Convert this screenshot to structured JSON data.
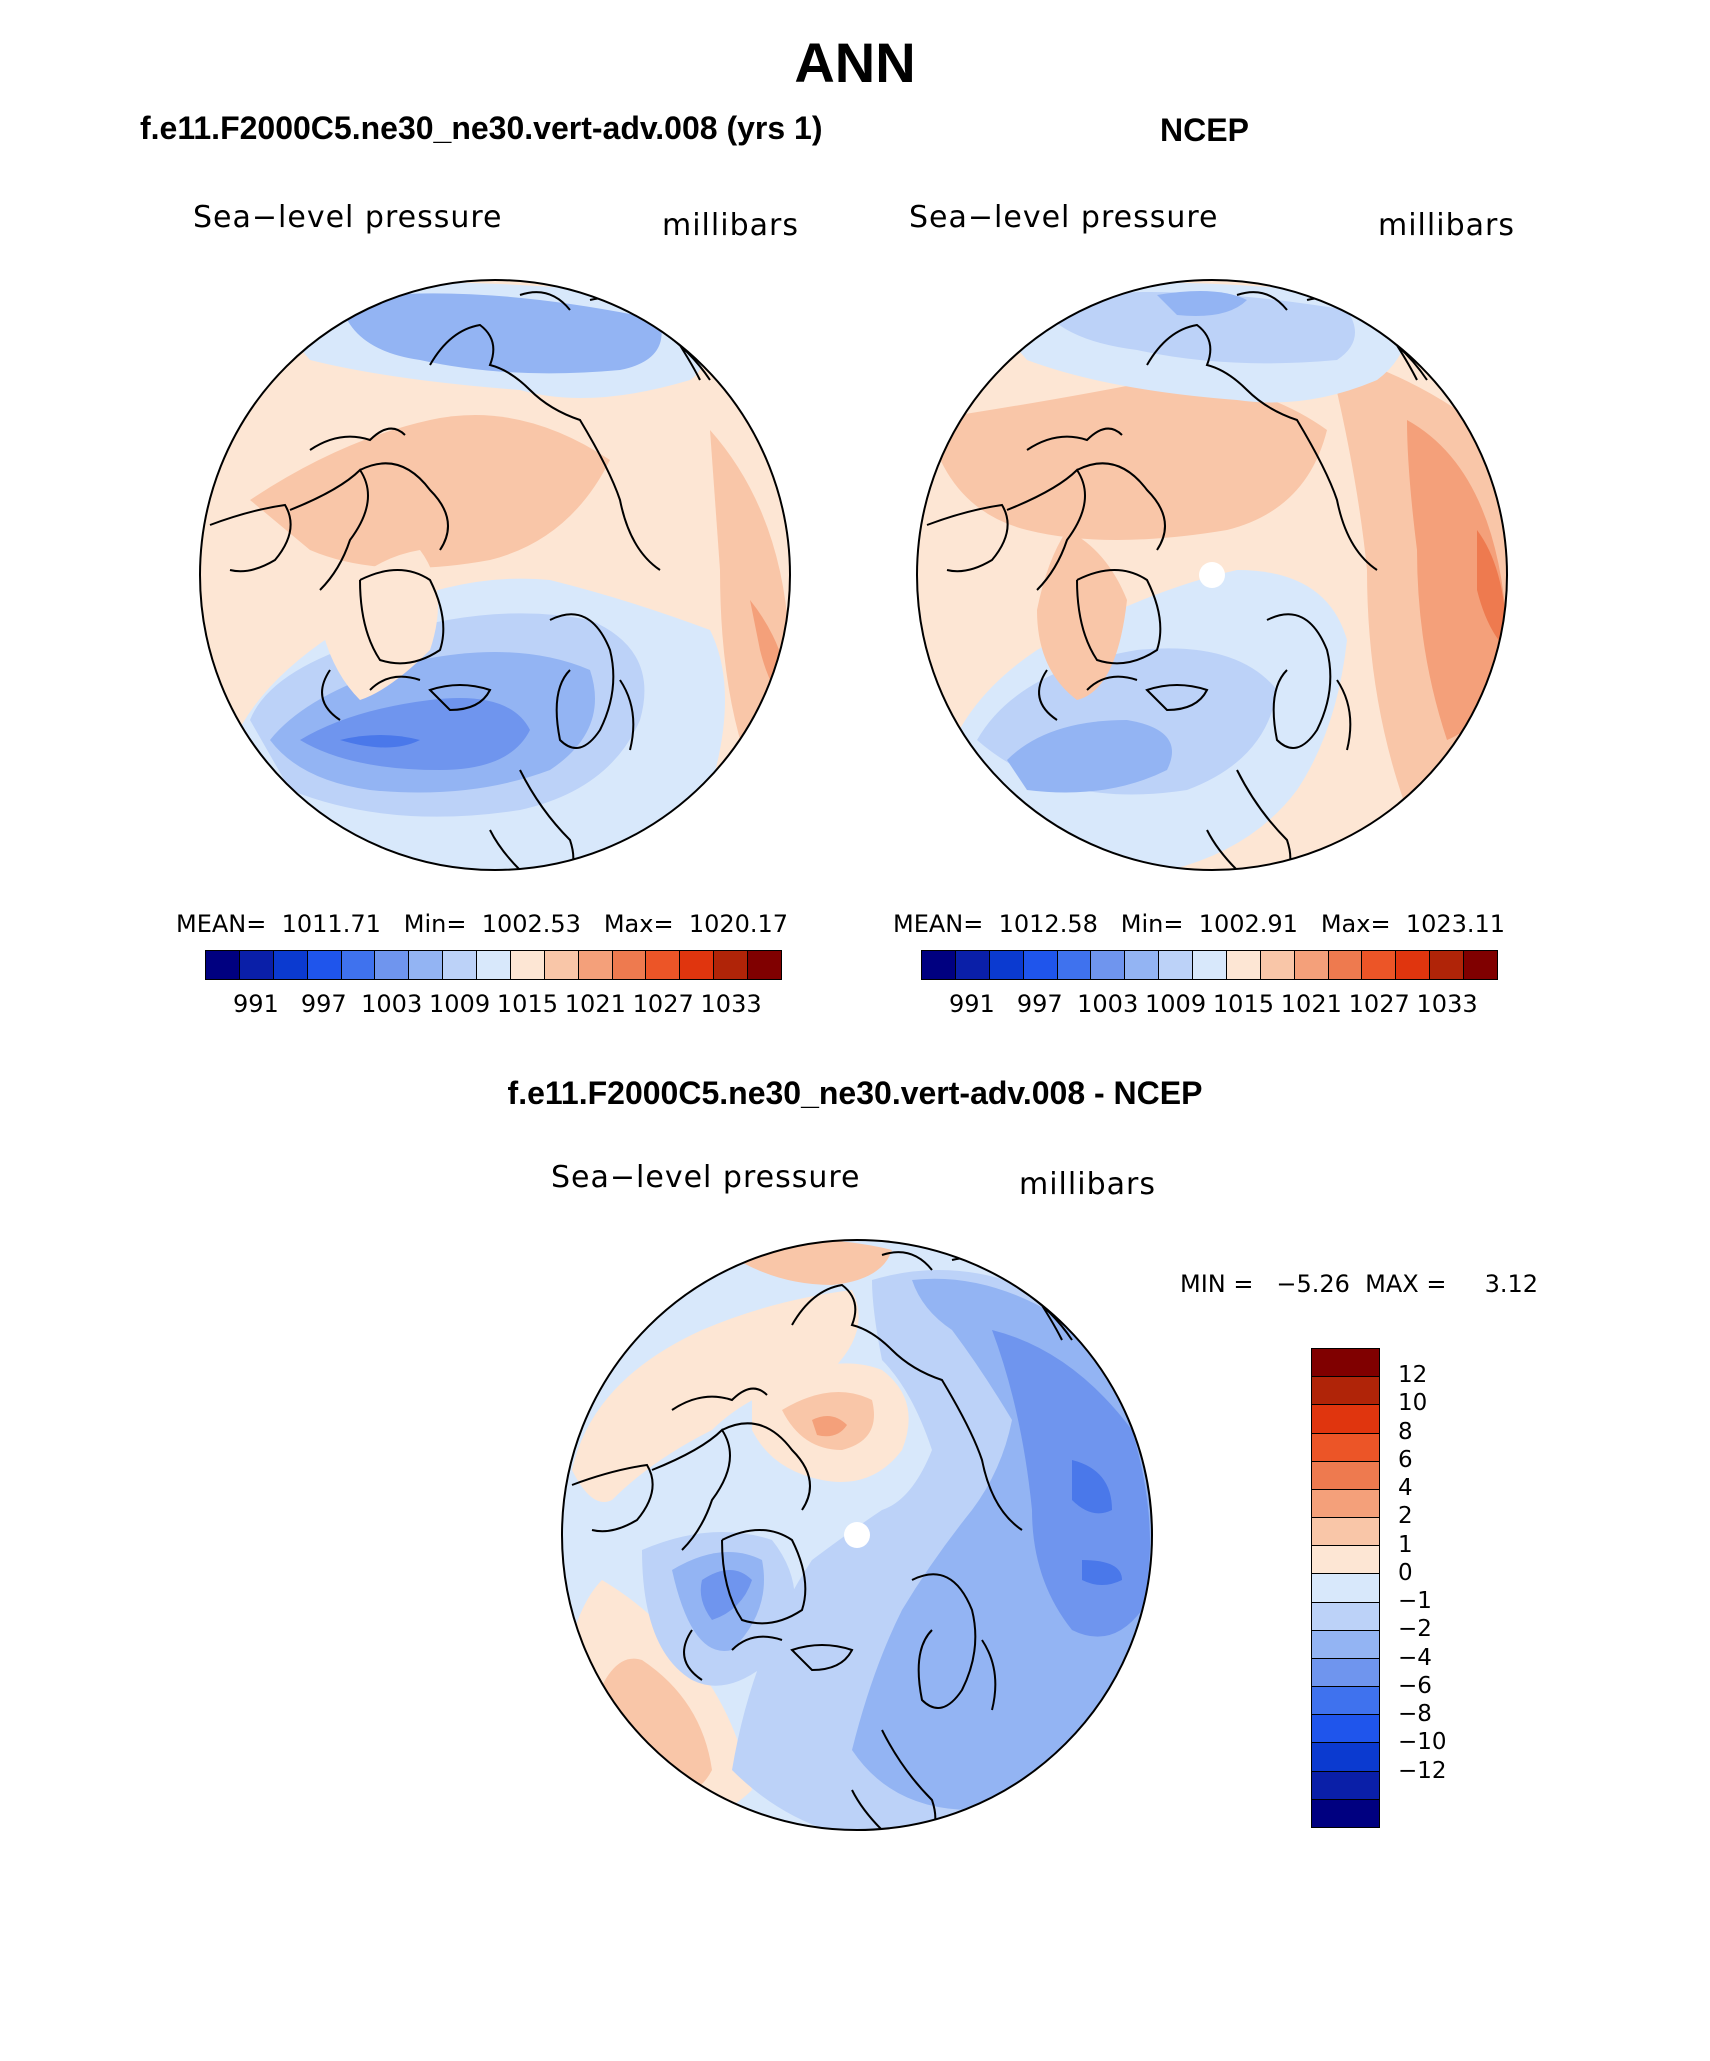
{
  "title": "ANN",
  "colors": {
    "coast": "#000000",
    "blue1": "#d8e8fb",
    "blue2": "#bcd2f8",
    "blue3": "#93b4f3",
    "blue4": "#6f95ee",
    "blue5": "#4a78ea",
    "red1": "#fde6d4",
    "red2": "#f9c6a8",
    "red3": "#f4a07a",
    "red4": "#ee7a4f"
  },
  "panels": {
    "model": {
      "header": "f.e11.F2000C5.ne30_ne30.vert-adv.008 (yrs 1)",
      "variable": "Sea−level pressure",
      "units": "millibars",
      "stats": "MEAN=  1011.71   Min=  1002.53   Max=  1020.17",
      "mean": 1011.71,
      "min": 1002.53,
      "max": 1020.17,
      "colorbar_labels": [
        "991",
        "997",
        "1003",
        "1009",
        "1015",
        "1021",
        "1027",
        "1033"
      ]
    },
    "obs": {
      "header": "NCEP",
      "variable": "Sea−level pressure",
      "units": "millibars",
      "stats": "MEAN=  1012.58   Min=  1002.91   Max=  1023.11",
      "mean": 1012.58,
      "min": 1002.91,
      "max": 1023.11,
      "colorbar_labels": [
        "991",
        "997",
        "1003",
        "1009",
        "1015",
        "1021",
        "1027",
        "1033"
      ]
    },
    "diff": {
      "header": "f.e11.F2000C5.ne30_ne30.vert-adv.008 - NCEP",
      "variable": "Sea−level pressure",
      "units": "millibars",
      "stats": "MIN =   −5.26  MAX =     3.12",
      "min": -5.26,
      "max": 3.12,
      "colorbar_labels": [
        "12",
        "10",
        "8",
        "6",
        "4",
        "2",
        "1",
        "0",
        "−1",
        "−2",
        "−4",
        "−6",
        "−8",
        "−10",
        "−12"
      ]
    }
  },
  "colorbar_fill": {
    "abs": [
      "#000080",
      "#0a1fa8",
      "#0b3ad0",
      "#1f55ec",
      "#3f72ee",
      "#6f95ee",
      "#93b4f3",
      "#bcd2f8",
      "#d8e8fb",
      "#fde6d4",
      "#f9c6a8",
      "#f4a07a",
      "#ee7a4f",
      "#ec5527",
      "#e0350e",
      "#b02408",
      "#800000"
    ],
    "diff": [
      "#800000",
      "#b02408",
      "#e0350e",
      "#ec5527",
      "#ee7a4f",
      "#f4a07a",
      "#f9c6a8",
      "#fde6d4",
      "#d8e8fb",
      "#bcd2f8",
      "#93b4f3",
      "#6f95ee",
      "#3f72ee",
      "#1f55ec",
      "#0b3ad0",
      "#0a1fa8",
      "#000080"
    ]
  }
}
